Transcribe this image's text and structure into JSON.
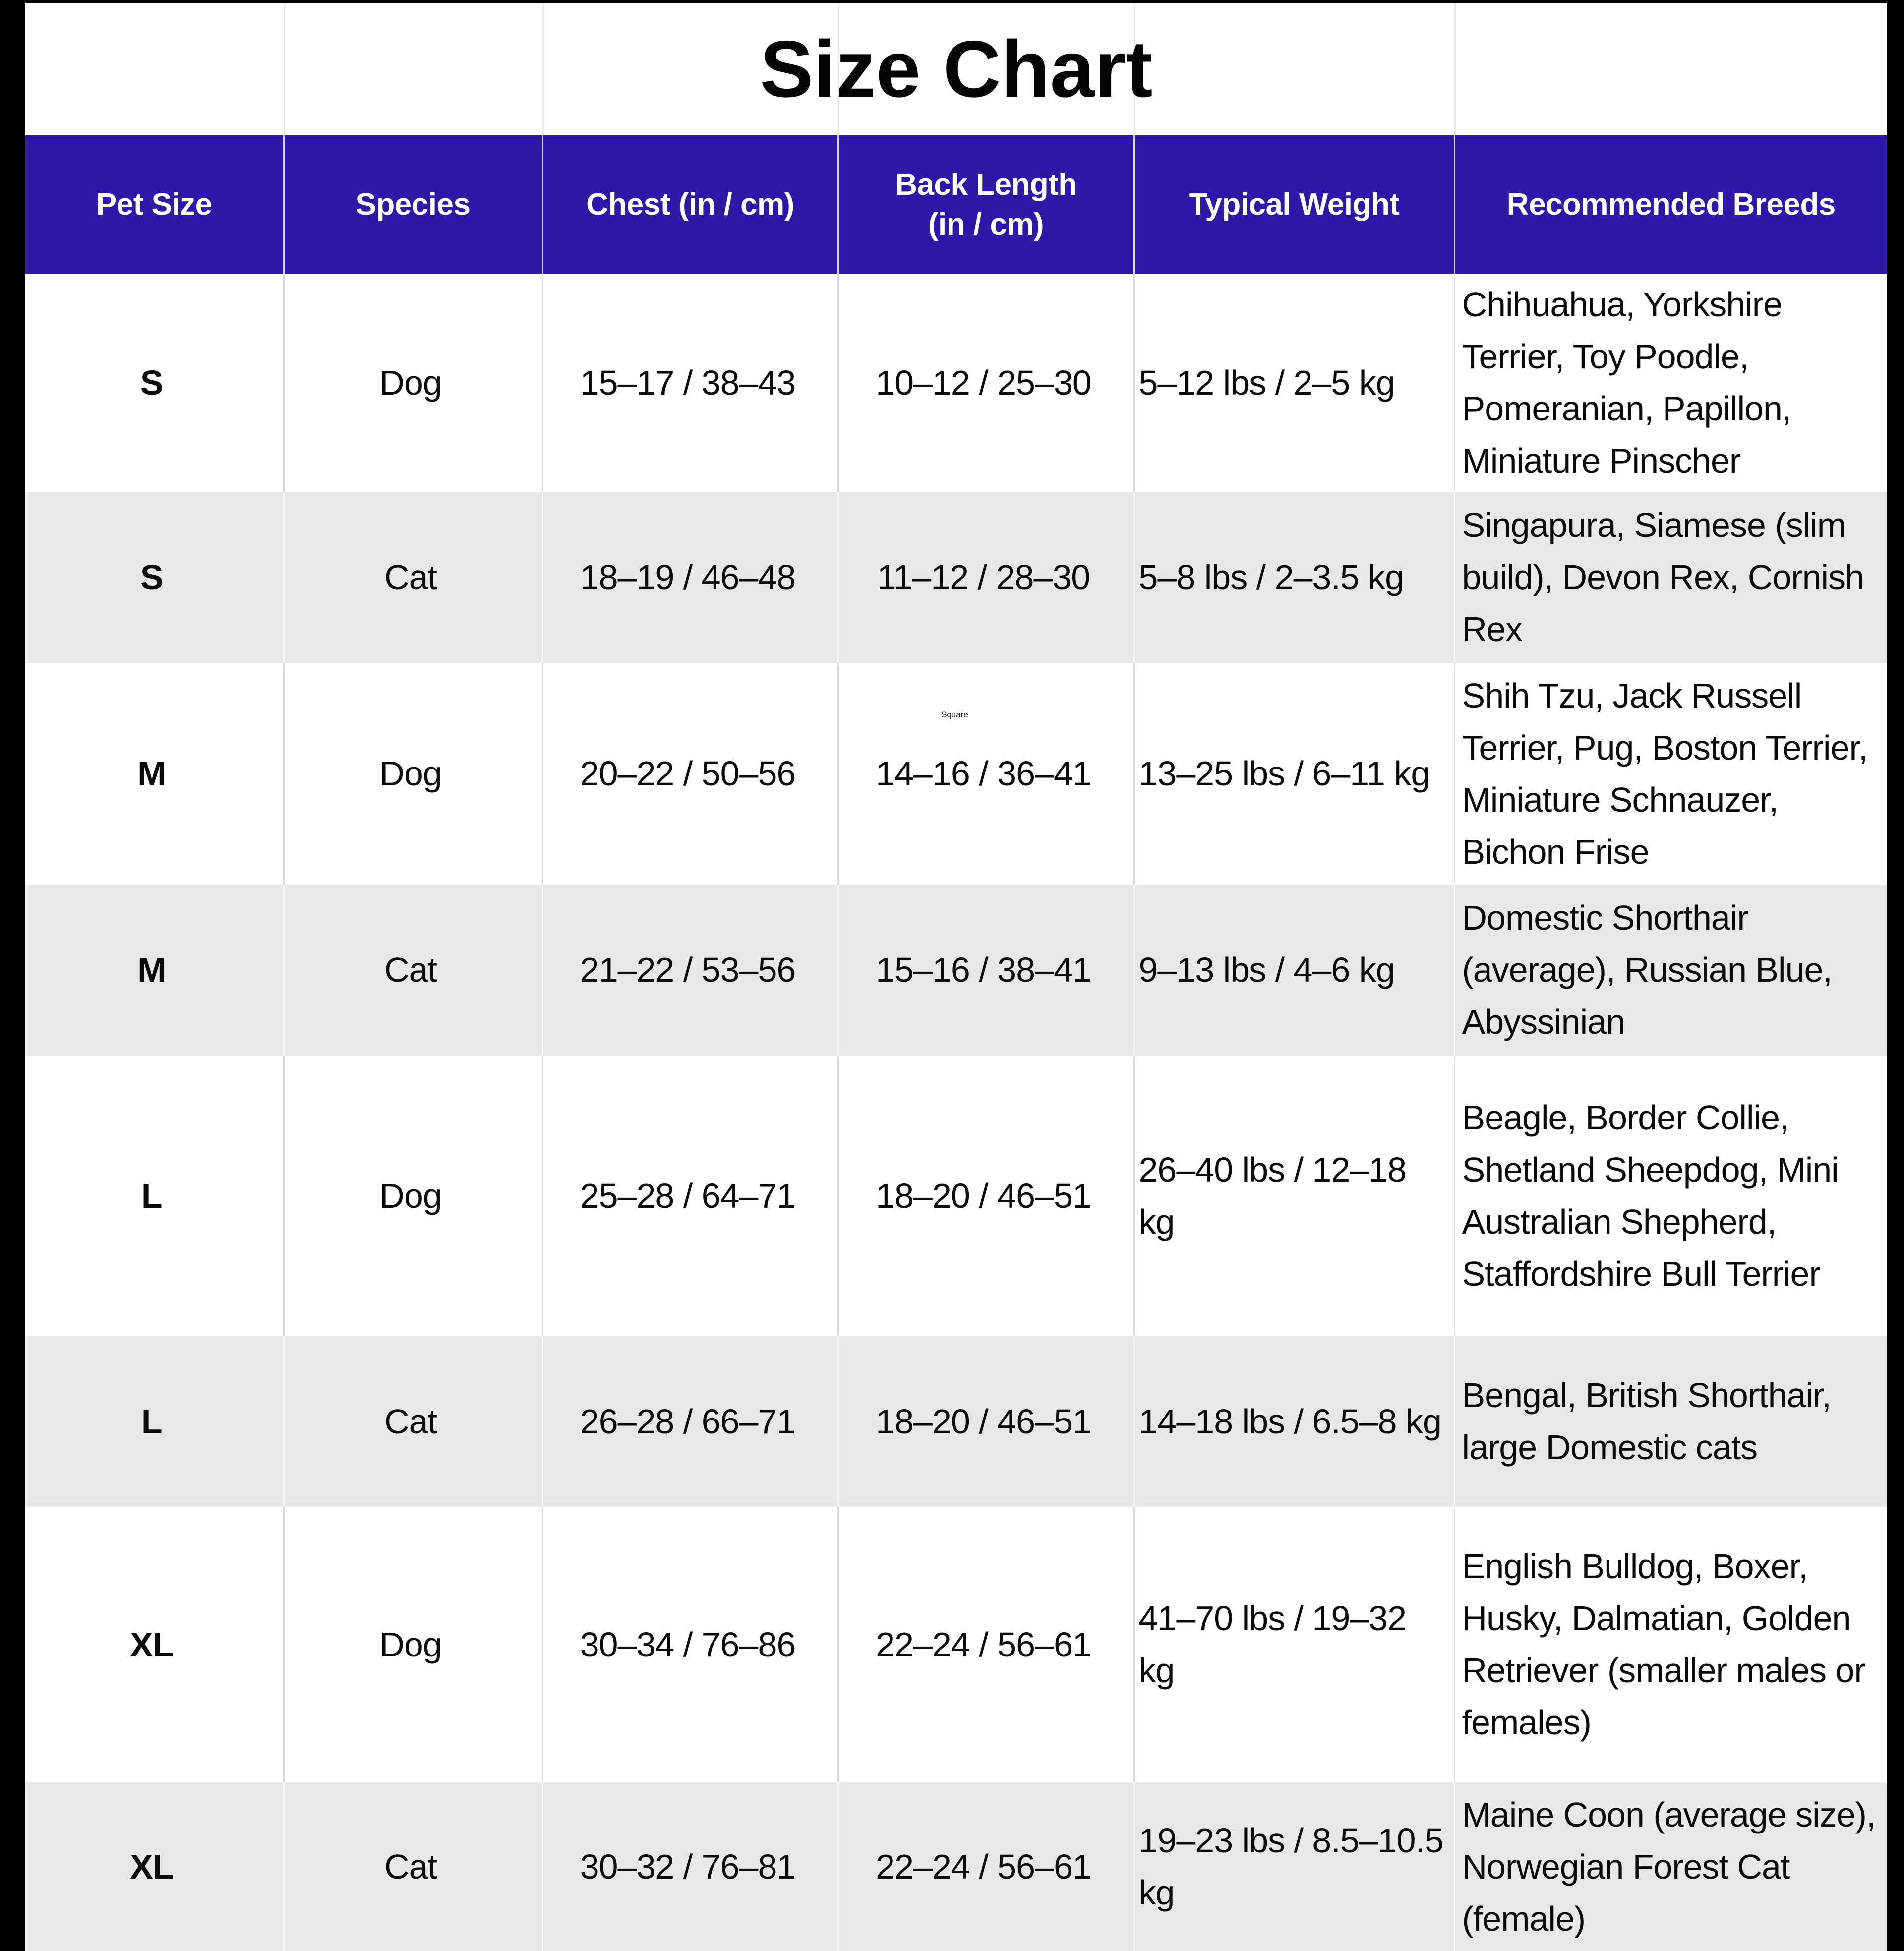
{
  "title": "Size Chart",
  "watermark": "Square",
  "colors": {
    "header_bg": "#2e18a8",
    "header_text": "#ffffff",
    "row_alt_bg": "#e8e8e8",
    "row_bg": "#ffffff",
    "body_text": "#0a0a0a",
    "frame": "#000000"
  },
  "table": {
    "columns": [
      "Pet Size",
      "Species",
      "Chest (in / cm)",
      "Back Length\n(in / cm)",
      "Typical Weight",
      "Recommended Breeds"
    ],
    "rows": [
      {
        "pet_size": "S",
        "species": "Dog",
        "chest": "15–17 / 38–43",
        "back_length": "10–12 / 25–30",
        "typical_weight": "5–12 lbs / 2–5 kg",
        "recommended_breeds": "Chihuahua, Yorkshire Terrier, Toy Poodle, Pomeranian, Papillon, Miniature Pinscher"
      },
      {
        "pet_size": "S",
        "species": "Cat",
        "chest": "18–19 / 46–48",
        "back_length": "11–12 / 28–30",
        "typical_weight": "5–8 lbs / 2–3.5 kg",
        "recommended_breeds": "Singapura, Siamese (slim build), Devon Rex, Cornish Rex"
      },
      {
        "pet_size": "M",
        "species": "Dog",
        "chest": "20–22 / 50–56",
        "back_length": "14–16 / 36–41",
        "typical_weight": "13–25 lbs / 6–11 kg",
        "recommended_breeds": "Shih Tzu, Jack Russell Terrier, Pug, Boston Terrier, Miniature Schnauzer, Bichon Frise"
      },
      {
        "pet_size": "M",
        "species": "Cat",
        "chest": "21–22 / 53–56",
        "back_length": "15–16 / 38–41",
        "typical_weight": "9–13 lbs / 4–6 kg",
        "recommended_breeds": "Domestic Shorthair (average), Russian Blue, Abyssinian"
      },
      {
        "pet_size": "L",
        "species": "Dog",
        "chest": "25–28 / 64–71",
        "back_length": "18–20 / 46–51",
        "typical_weight": "26–40 lbs / 12–18 kg",
        "recommended_breeds": "Beagle, Border Collie, Shetland Sheepdog, Mini Australian Shepherd, Staffordshire Bull Terrier"
      },
      {
        "pet_size": "L",
        "species": "Cat",
        "chest": "26–28 / 66–71",
        "back_length": "18–20 / 46–51",
        "typical_weight": "14–18 lbs / 6.5–8 kg",
        "recommended_breeds": "Bengal, British Shorthair, large Domestic cats"
      },
      {
        "pet_size": "XL",
        "species": "Dog",
        "chest": "30–34 / 76–86",
        "back_length": "22–24 / 56–61",
        "typical_weight": "41–70 lbs / 19–32 kg",
        "recommended_breeds": "English Bulldog, Boxer, Husky, Dalmatian, Golden Retriever (smaller males or females)"
      },
      {
        "pet_size": "XL",
        "species": "Cat",
        "chest": "30–32 / 76–81",
        "back_length": "22–24 / 56–61",
        "typical_weight": "19–23 lbs / 8.5–10.5 kg",
        "recommended_breeds": "Maine Coon (average size), Norwegian Forest Cat (female)"
      }
    ]
  }
}
